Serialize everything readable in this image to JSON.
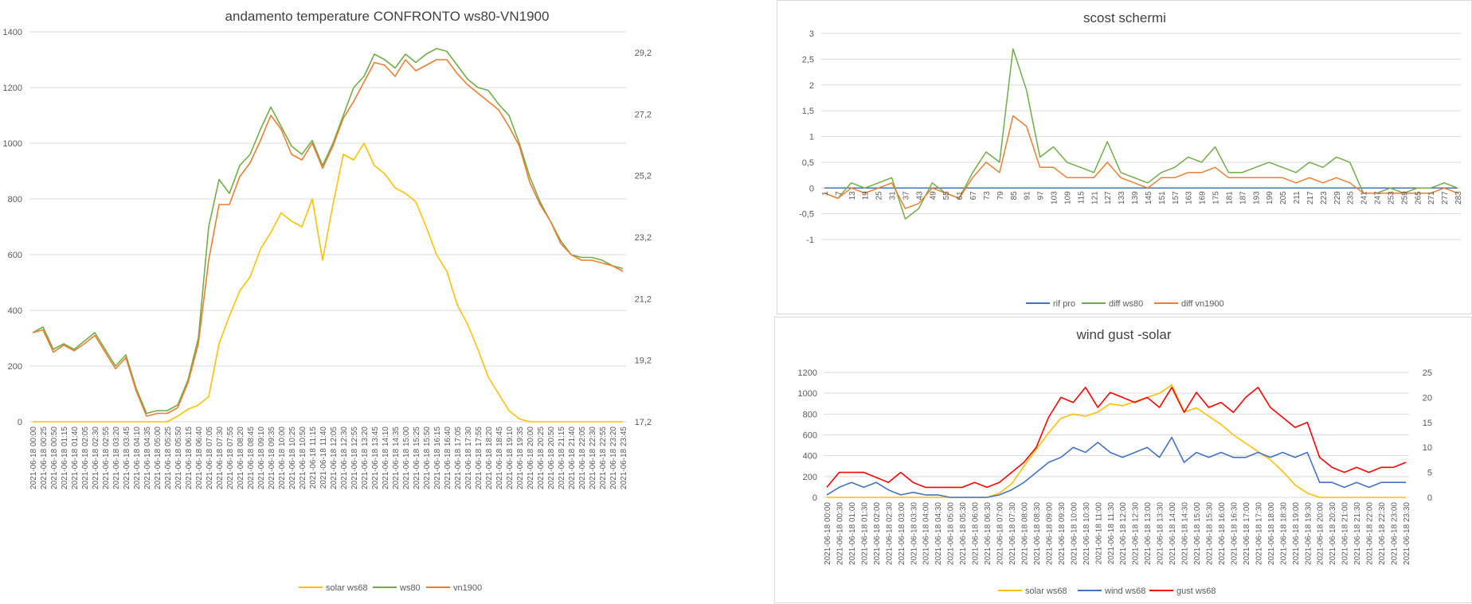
{
  "charts": [
    {
      "id": "temp",
      "type": "line",
      "title": "andamento temperature CONFRONTO ws80-VN1900",
      "yticks_left": [
        "0",
        "200",
        "400",
        "600",
        "800",
        "1000",
        "1200",
        "1400"
      ],
      "yticks_right": [
        "17,2",
        "19,2",
        "21,2",
        "23,2",
        "25,2",
        "27,2",
        "29,2"
      ],
      "xlabels": [
        "2021-06-18 00:00",
        "2021-06-18 00:25",
        "2021-06-18 00:50",
        "2021-06-18 01:15",
        "2021-06-18 01:40",
        "2021-06-18 02:05",
        "2021-06-18 02:30",
        "2021-06-18 02:55",
        "2021-06-18 03:20",
        "2021-06-18 03:45",
        "2021-06-18 04:10",
        "2021-06-18 04:35",
        "2021-06-18 05:00",
        "2021-06-18 05:25",
        "2021-06-18 05:50",
        "2021-06-18 06:15",
        "2021-06-18 06:40",
        "2021-06-18 07:05",
        "2021-06-18 07:30",
        "2021-06-18 07:55",
        "2021-06-18 08:20",
        "2021-06-18 08:45",
        "2021-06-18 09:10",
        "2021-06-18 09:35",
        "2021-06-18 10:00",
        "2021-06-18 10:25",
        "2021-06-18 10:50",
        "2021-06-18 11:15",
        "2021-06-18 11:40",
        "2021-06-18 12:05",
        "2021-06-18 12:30",
        "2021-06-18 12:55",
        "2021-06-18 13:20",
        "2021-06-18 13:45",
        "2021-06-18 14:10",
        "2021-06-18 14:35",
        "2021-06-18 15:00",
        "2021-06-18 15:25",
        "2021-06-18 15:50",
        "2021-06-18 16:15",
        "2021-06-18 16:40",
        "2021-06-18 17:05",
        "2021-06-18 17:30",
        "2021-06-18 17:55",
        "2021-06-18 18:20",
        "2021-06-18 18:45",
        "2021-06-18 19:10",
        "2021-06-18 19:35",
        "2021-06-18 20:00",
        "2021-06-18 20:25",
        "2021-06-18 20:50",
        "2021-06-18 21:15",
        "2021-06-18 21:40",
        "2021-06-18 22:05",
        "2021-06-18 22:30",
        "2021-06-18 22:55",
        "2021-06-18 23:20",
        "2021-06-18 23:45"
      ],
      "series": [
        {
          "name": "solar ws68",
          "color": "#FFC000",
          "values": [
            0,
            0,
            0,
            0,
            0,
            0,
            0,
            0,
            0,
            0,
            0,
            0,
            0,
            0,
            20,
            45,
            60,
            90,
            280,
            380,
            470,
            520,
            620,
            680,
            750,
            720,
            700,
            800,
            580,
            780,
            960,
            940,
            1000,
            920,
            890,
            840,
            820,
            790,
            700,
            600,
            540,
            420,
            350,
            260,
            160,
            100,
            40,
            10,
            0,
            0,
            0,
            0,
            0,
            0,
            0,
            0,
            0,
            0
          ]
        },
        {
          "name": "ws80",
          "color": "#70AD47",
          "values": [
            320,
            340,
            260,
            280,
            260,
            290,
            320,
            260,
            200,
            240,
            120,
            30,
            40,
            40,
            60,
            150,
            300,
            700,
            870,
            820,
            920,
            960,
            1050,
            1130,
            1060,
            990,
            960,
            1010,
            920,
            1000,
            1100,
            1200,
            1240,
            1320,
            1300,
            1270,
            1320,
            1290,
            1320,
            1340,
            1330,
            1280,
            1230,
            1200,
            1190,
            1140,
            1100,
            1000,
            880,
            790,
            720,
            650,
            600,
            590,
            590,
            580,
            560,
            550
          ]
        },
        {
          "name": "vn1900",
          "color": "#ED7D31",
          "values": [
            320,
            330,
            250,
            275,
            255,
            280,
            310,
            250,
            190,
            230,
            110,
            20,
            30,
            30,
            50,
            140,
            280,
            580,
            780,
            780,
            880,
            930,
            1010,
            1100,
            1050,
            960,
            940,
            1000,
            910,
            990,
            1090,
            1150,
            1220,
            1290,
            1280,
            1240,
            1300,
            1260,
            1280,
            1300,
            1300,
            1250,
            1210,
            1180,
            1150,
            1120,
            1060,
            990,
            860,
            780,
            720,
            640,
            600,
            580,
            580,
            570,
            560,
            540
          ]
        }
      ]
    },
    {
      "id": "diff",
      "type": "line",
      "title": "scost schermi",
      "yticks": [
        "3",
        "2,5",
        "2",
        "1,5",
        "1",
        "0,5",
        "0",
        "-0,5",
        "-1"
      ],
      "xlabels": [
        "1",
        "7",
        "13",
        "19",
        "25",
        "31",
        "37",
        "43",
        "49",
        "55",
        "61",
        "67",
        "73",
        "79",
        "85",
        "91",
        "97",
        "103",
        "109",
        "115",
        "121",
        "127",
        "133",
        "139",
        "145",
        "151",
        "157",
        "163",
        "169",
        "175",
        "181",
        "187",
        "193",
        "199",
        "205",
        "211",
        "217",
        "223",
        "229",
        "235",
        "241",
        "247",
        "253",
        "259",
        "265",
        "271",
        "277",
        "283"
      ],
      "series": [
        {
          "name": "rif pro",
          "color": "#4472C4",
          "values": [
            0,
            0,
            0,
            0,
            0,
            0,
            0,
            0,
            0,
            0,
            0,
            0,
            0,
            0,
            0,
            0,
            0,
            0,
            0,
            0,
            0,
            0,
            0,
            0,
            0,
            0,
            0,
            0,
            0,
            0,
            0,
            0,
            0,
            0,
            0,
            0,
            0,
            0,
            0,
            0,
            0,
            0,
            0,
            0,
            0,
            0,
            0,
            0
          ]
        },
        {
          "name": "diff ws80",
          "color": "#70AD47",
          "values": [
            -0.1,
            -0.2,
            0.1,
            0,
            0.1,
            0.2,
            -0.6,
            -0.4,
            0.1,
            -0.1,
            -0.2,
            0.3,
            0.7,
            0.5,
            2.7,
            1.9,
            0.6,
            0.8,
            0.5,
            0.4,
            0.3,
            0.9,
            0.3,
            0.2,
            0.1,
            0.3,
            0.4,
            0.6,
            0.5,
            0.8,
            0.3,
            0.3,
            0.4,
            0.5,
            0.4,
            0.3,
            0.5,
            0.4,
            0.6,
            0.5,
            -0.1,
            -0.1,
            0,
            -0.1,
            0,
            0,
            0.1,
            0
          ]
        },
        {
          "name": "diff vn1900",
          "color": "#ED7D31",
          "values": [
            -0.1,
            -0.2,
            0,
            -0.1,
            0,
            0.1,
            -0.4,
            -0.3,
            0,
            -0.1,
            -0.2,
            0.2,
            0.5,
            0.3,
            1.4,
            1.2,
            0.4,
            0.4,
            0.2,
            0.2,
            0.2,
            0.5,
            0.2,
            0.1,
            0,
            0.2,
            0.2,
            0.3,
            0.3,
            0.4,
            0.2,
            0.2,
            0.2,
            0.2,
            0.2,
            0.1,
            0.2,
            0.1,
            0.2,
            0.1,
            -0.1,
            -0.1,
            -0.1,
            -0.1,
            -0.1,
            -0.1,
            0,
            -0.1
          ]
        }
      ]
    },
    {
      "id": "wind",
      "type": "line",
      "title": "wind gust -solar",
      "yticks_left": [
        "0",
        "200",
        "400",
        "600",
        "800",
        "1000",
        "1200"
      ],
      "yticks_right": [
        "0",
        "5",
        "10",
        "15",
        "20",
        "25"
      ],
      "xlabels": [
        "2021-06-18 00:00",
        "2021-06-18 00:30",
        "2021-06-18 01:00",
        "2021-06-18 01:30",
        "2021-06-18 02:00",
        "2021-06-18 02:30",
        "2021-06-18 03:00",
        "2021-06-18 03:30",
        "2021-06-18 04:00",
        "2021-06-18 04:30",
        "2021-06-18 05:00",
        "2021-06-18 05:30",
        "2021-06-18 06:00",
        "2021-06-18 06:30",
        "2021-06-18 07:00",
        "2021-06-18 07:30",
        "2021-06-18 08:00",
        "2021-06-18 08:30",
        "2021-06-18 09:00",
        "2021-06-18 09:30",
        "2021-06-18 10:00",
        "2021-06-18 10:30",
        "2021-06-18 11:00",
        "2021-06-18 11:30",
        "2021-06-18 12:00",
        "2021-06-18 12:30",
        "2021-06-18 13:00",
        "2021-06-18 13:30",
        "2021-06-18 14:00",
        "2021-06-18 14:30",
        "2021-06-18 15:00",
        "2021-06-18 15:30",
        "2021-06-18 16:00",
        "2021-06-18 16:30",
        "2021-06-18 17:00",
        "2021-06-18 17:30",
        "2021-06-18 18:00",
        "2021-06-18 18:30",
        "2021-06-18 19:00",
        "2021-06-18 19:30",
        "2021-06-18 20:00",
        "2021-06-18 20:30",
        "2021-06-18 21:00",
        "2021-06-18 21:30",
        "2021-06-18 22:00",
        "2021-06-18 22:30",
        "2021-06-18 23:00",
        "2021-06-18 23:30"
      ],
      "series": [
        {
          "name": "solar ws68",
          "color": "#FFC000",
          "axis": "left",
          "values": [
            0,
            0,
            0,
            0,
            0,
            0,
            0,
            0,
            0,
            0,
            0,
            0,
            0,
            0,
            40,
            130,
            300,
            460,
            620,
            760,
            800,
            780,
            820,
            900,
            880,
            920,
            960,
            1000,
            1080,
            820,
            860,
            780,
            700,
            600,
            520,
            440,
            360,
            250,
            120,
            40,
            0,
            0,
            0,
            0,
            0,
            0,
            0,
            0
          ]
        },
        {
          "name": "wind ws68",
          "color": "#4472C4",
          "axis": "right",
          "values": [
            0.5,
            2,
            3,
            2,
            3,
            1.5,
            0.5,
            1,
            0.5,
            0.5,
            0,
            0,
            0,
            0,
            0.5,
            1.5,
            3,
            5,
            7,
            8,
            10,
            9,
            11,
            9,
            8,
            9,
            10,
            8,
            12,
            7,
            9,
            8,
            9,
            8,
            8,
            9,
            8,
            9,
            8,
            9,
            3,
            3,
            2,
            3,
            2,
            3,
            3,
            3
          ]
        },
        {
          "name": "gust ws68",
          "color": "#FF0000",
          "axis": "right",
          "values": [
            2,
            5,
            5,
            5,
            4,
            3,
            5,
            3,
            2,
            2,
            2,
            2,
            3,
            2,
            3,
            5,
            7,
            10,
            16,
            20,
            19,
            22,
            18,
            21,
            20,
            19,
            20,
            18,
            22,
            17,
            21,
            18,
            19,
            17,
            20,
            22,
            18,
            16,
            14,
            15,
            8,
            6,
            5,
            6,
            5,
            6,
            6,
            7
          ]
        }
      ]
    }
  ]
}
